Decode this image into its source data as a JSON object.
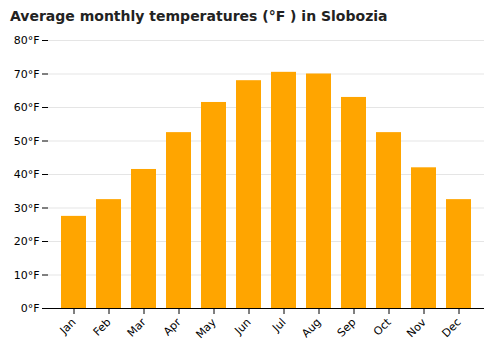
{
  "chart_data": {
    "type": "bar",
    "title": "Average monthly temperatures (°F ) in Slobozia",
    "categories": [
      "Jan",
      "Feb",
      "Mar",
      "Apr",
      "May",
      "Jun",
      "Jul",
      "Aug",
      "Sep",
      "Oct",
      "Nov",
      "Dec"
    ],
    "values": [
      27.5,
      32.5,
      41.5,
      52.5,
      61.5,
      68,
      70.5,
      70,
      63,
      52.5,
      42,
      32.5
    ],
    "color": "#FFA500",
    "ylim": [
      0,
      80
    ],
    "yticks": [
      {
        "value": 0,
        "label": "0°F"
      },
      {
        "value": 10,
        "label": "10°F"
      },
      {
        "value": 20,
        "label": "20°F"
      },
      {
        "value": 30,
        "label": "30°F"
      },
      {
        "value": 40,
        "label": "40°F"
      },
      {
        "value": 50,
        "label": "50°F"
      },
      {
        "value": 60,
        "label": "60°F"
      },
      {
        "value": 70,
        "label": "70°F"
      },
      {
        "value": 80,
        "label": "80°F"
      }
    ],
    "grid": true
  }
}
